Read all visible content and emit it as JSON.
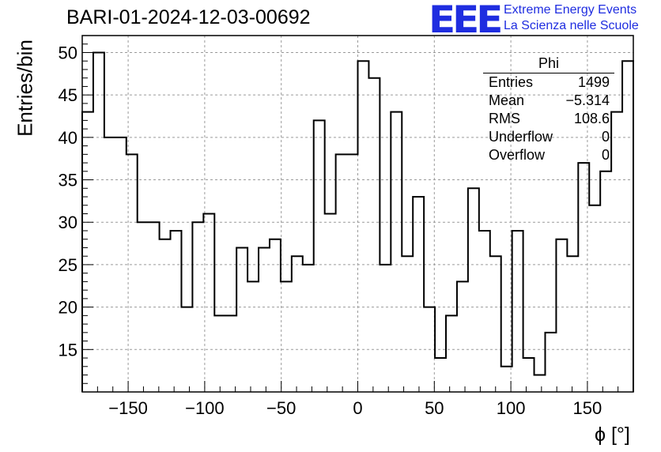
{
  "header": {
    "title": "BARI-01-2024-12-03-00692",
    "logo_text": "EEE",
    "logo_line1": "Extreme Energy Events",
    "logo_line2": "La Scienza nelle Scuole",
    "brand_color": "#1f2de0"
  },
  "stats": {
    "title": "Phi",
    "rows": [
      {
        "label": "Entries",
        "value": "1499"
      },
      {
        "label": "Mean",
        "value": "−5.314"
      },
      {
        "label": "RMS",
        "value": "108.6"
      },
      {
        "label": "Underflow",
        "value": "0"
      },
      {
        "label": "Overflow",
        "value": "0"
      }
    ]
  },
  "chart_data": {
    "type": "bar",
    "style": "step-histogram",
    "title": "BARI-01-2024-12-03-00692",
    "xlabel": "ϕ [°]",
    "ylabel": "Entries/bin",
    "xlim": [
      -180,
      180
    ],
    "ylim": [
      10,
      52
    ],
    "grid": true,
    "x_ticks": [
      -150,
      -100,
      -50,
      0,
      50,
      100,
      150
    ],
    "x_tick_labels": [
      "−150",
      "−100",
      "−50",
      "0",
      "50",
      "100",
      "150"
    ],
    "y_ticks": [
      15,
      20,
      25,
      30,
      35,
      40,
      45,
      50
    ],
    "bin_edges_start": -180,
    "bin_width": 7.2,
    "values": [
      43,
      50,
      40,
      40,
      38,
      30,
      30,
      28,
      29,
      20,
      30,
      31,
      19,
      19,
      27,
      23,
      27,
      28,
      23,
      26,
      25,
      42,
      31,
      38,
      38,
      49,
      47,
      25,
      43,
      26,
      33,
      20,
      14,
      19,
      23,
      34,
      29,
      26,
      13,
      29,
      14,
      12,
      17,
      28,
      26,
      37,
      32,
      36,
      43,
      49
    ]
  }
}
